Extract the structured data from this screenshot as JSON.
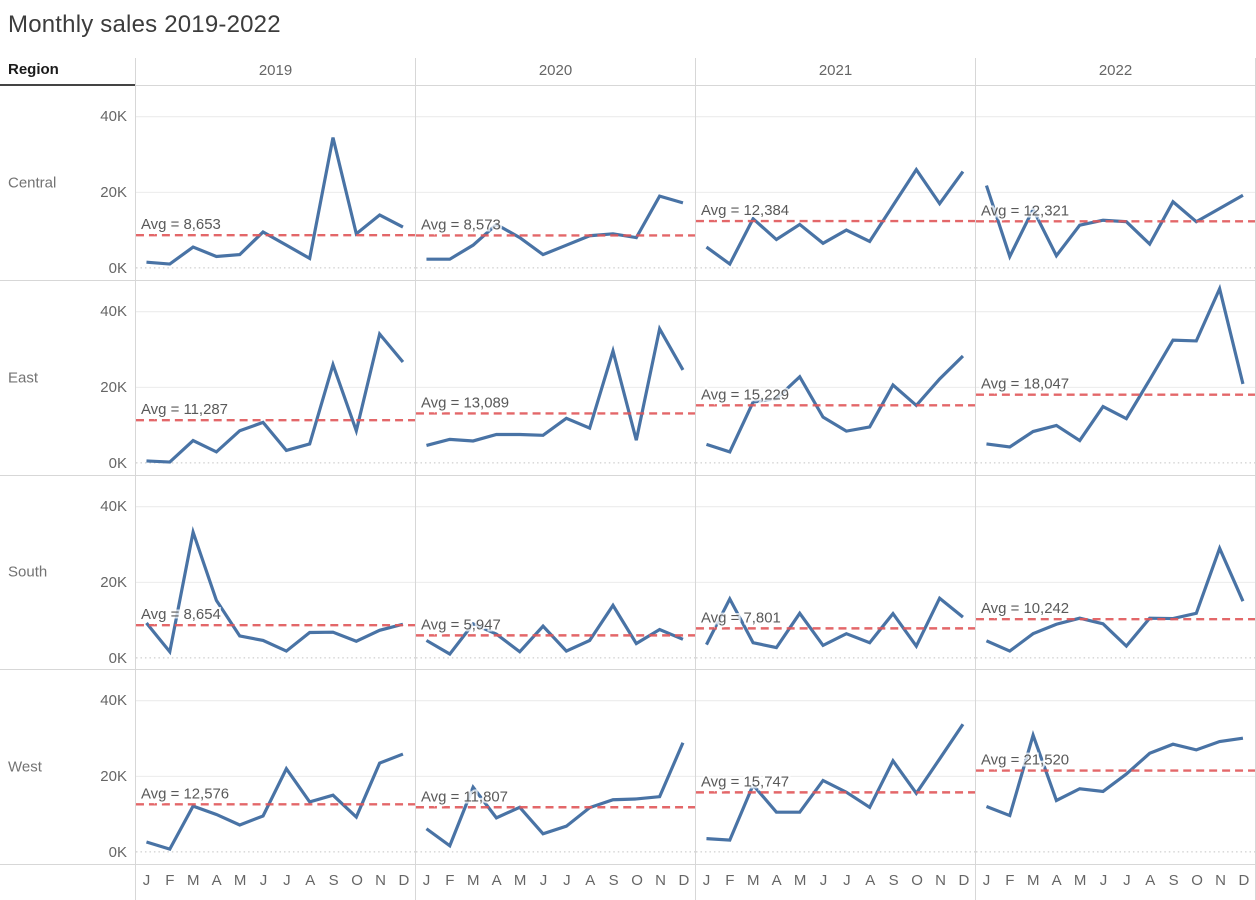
{
  "title": "Monthly sales 2019-2022",
  "columns": {
    "region_header": "Region",
    "years": [
      "2019",
      "2020",
      "2021",
      "2022"
    ]
  },
  "axis": {
    "y_tick_labels": [
      "40K",
      "20K",
      "0K"
    ],
    "y_tick_values": [
      40000,
      20000,
      0
    ],
    "ylim": [
      0,
      48000
    ],
    "month_labels": [
      "J",
      "F",
      "M",
      "A",
      "M",
      "J",
      "J",
      "A",
      "S",
      "O",
      "N",
      "D"
    ],
    "grid": "on"
  },
  "colors": {
    "line": "#4973a5",
    "avg_line": "#e15759",
    "grid": "#e9e9e9",
    "zero_line": "#c4c4c4",
    "border": "#d7d7d7",
    "header_text": "#666666",
    "region_text": "#737373",
    "annotation_text": "#595959",
    "title_text": "#3c3c3c"
  },
  "chart_data": {
    "type": "line",
    "x": [
      "J",
      "F",
      "M",
      "A",
      "M",
      "J",
      "J",
      "A",
      "S",
      "O",
      "N",
      "D"
    ],
    "legend": "none",
    "rows": [
      {
        "region": "Central",
        "cells": [
          {
            "year": "2019",
            "avg": 8653,
            "avg_label": "Avg = 8,653",
            "values": [
              1500,
              1000,
              5500,
              3000,
              3500,
              9500,
              6000,
              2500,
              34500,
              9000,
              14000,
              10800
            ]
          },
          {
            "year": "2020",
            "avg": 8573,
            "avg_label": "Avg = 8,573",
            "values": [
              2300,
              2300,
              6000,
              11500,
              8000,
              3500,
              6000,
              8500,
              9000,
              8000,
              19000,
              17200
            ]
          },
          {
            "year": "2021",
            "avg": 12384,
            "avg_label": "Avg = 12,384",
            "values": [
              5500,
              1000,
              13000,
              7500,
              11500,
              6500,
              10000,
              7000,
              16500,
              26000,
              17000,
              25500
            ]
          },
          {
            "year": "2022",
            "avg": 12321,
            "avg_label": "Avg = 12,321",
            "values": [
              21800,
              3000,
              15500,
              3200,
              11300,
              12600,
              12200,
              6300,
              17500,
              12200,
              15700,
              19200
            ]
          }
        ]
      },
      {
        "region": "East",
        "cells": [
          {
            "year": "2019",
            "avg": 11287,
            "avg_label": "Avg = 11,287",
            "values": [
              500,
              200,
              5900,
              2900,
              8500,
              10700,
              3300,
              5000,
              26000,
              8500,
              34100,
              26700
            ]
          },
          {
            "year": "2020",
            "avg": 13089,
            "avg_label": "Avg = 13,089",
            "values": [
              4600,
              6200,
              5800,
              7500,
              7500,
              7300,
              11800,
              9200,
              29600,
              6000,
              35500,
              24600
            ]
          },
          {
            "year": "2021",
            "avg": 15229,
            "avg_label": "Avg = 15,229",
            "values": [
              4900,
              2900,
              16100,
              17000,
              22800,
              12100,
              8400,
              9500,
              20600,
              15200,
              22200,
              28300
            ]
          },
          {
            "year": "2022",
            "avg": 18047,
            "avg_label": "Avg = 18,047",
            "values": [
              5000,
              4200,
              8300,
              9900,
              5900,
              14900,
              11700,
              22000,
              32500,
              32300,
              46100,
              20900
            ]
          }
        ]
      },
      {
        "region": "South",
        "cells": [
          {
            "year": "2019",
            "avg": 8654,
            "avg_label": "Avg = 8,654",
            "values": [
              9200,
              1600,
              33300,
              15200,
              5800,
              4600,
              1800,
              6700,
              6800,
              4400,
              7300,
              8900
            ]
          },
          {
            "year": "2020",
            "avg": 5947,
            "avg_label": "Avg = 5,947",
            "values": [
              4600,
              1000,
              9000,
              6300,
              1600,
              8400,
              1800,
              4600,
              13900,
              3800,
              7500,
              4900
            ]
          },
          {
            "year": "2021",
            "avg": 7801,
            "avg_label": "Avg = 7,801",
            "values": [
              3500,
              15600,
              4000,
              2700,
              11800,
              3300,
              6400,
              4000,
              11700,
              3100,
              15800,
              10800
            ]
          },
          {
            "year": "2022",
            "avg": 10242,
            "avg_label": "Avg = 10,242",
            "values": [
              4500,
              1800,
              6400,
              8900,
              10500,
              9000,
              3100,
              10500,
              10400,
              11800,
              29000,
              15000
            ]
          }
        ]
      },
      {
        "region": "West",
        "cells": [
          {
            "year": "2019",
            "avg": 12576,
            "avg_label": "Avg = 12,576",
            "values": [
              2600,
              700,
              12100,
              9900,
              7100,
              9500,
              22000,
              13200,
              15000,
              9200,
              23500,
              25900
            ]
          },
          {
            "year": "2020",
            "avg": 11807,
            "avg_label": "Avg = 11,807",
            "values": [
              6100,
              1600,
              17100,
              9000,
              11800,
              4800,
              6800,
              11700,
              13800,
              14000,
              14600,
              28900
            ]
          },
          {
            "year": "2021",
            "avg": 15747,
            "avg_label": "Avg = 15,747",
            "values": [
              3500,
              3100,
              17700,
              10500,
              10500,
              18900,
              15800,
              11800,
              24100,
              15500,
              24600,
              33800
            ]
          },
          {
            "year": "2022",
            "avg": 21520,
            "avg_label": "Avg = 21,520",
            "values": [
              12000,
              9600,
              30900,
              13600,
              16700,
              16000,
              20600,
              26100,
              28500,
              27000,
              29200,
              30100
            ]
          }
        ]
      }
    ]
  }
}
